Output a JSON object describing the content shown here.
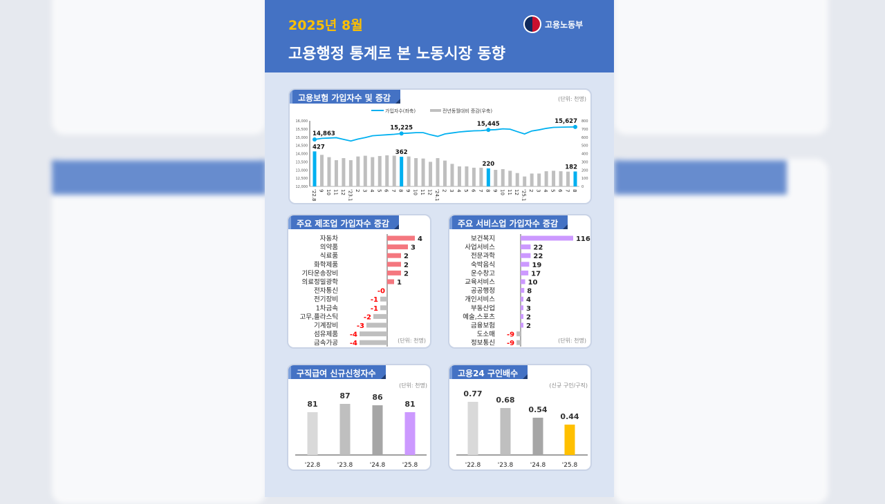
{
  "header": {
    "date": "2025년 8월",
    "title": "고용행정 통계로 본 노동시장 동향",
    "ministry": "고용노동부"
  },
  "colors": {
    "header": "#4472c4",
    "date": "#ffc000",
    "line": "#00b0f0",
    "bar": "#bfbfbf",
    "highlight": "#00b0f0",
    "mfg_pos": "#f4777f",
    "neg": "#bfbfbf",
    "neg_label": "#ff0000",
    "svc_pos": "#cc99ff"
  },
  "insured": {
    "title": "고용보험 가입자수 및 증감",
    "unit": "(단위: 천명)",
    "chart_data": {
      "type": "bar+line",
      "legend": {
        "line": "가입자수(좌축)",
        "bar": "전년동월대비 증감(우축)",
        "placement": "top"
      },
      "x": [
        "'22.8",
        "9",
        "10",
        "11",
        "12",
        "'23.1",
        "2",
        "3",
        "4",
        "5",
        "6",
        "7",
        "8",
        "9",
        "10",
        "11",
        "12",
        "'24.1",
        "2",
        "3",
        "4",
        "5",
        "6",
        "7",
        "8",
        "9",
        "10",
        "11",
        "12",
        "'25.1",
        "2",
        "3",
        "4",
        "5",
        "6",
        "7",
        "8"
      ],
      "line_values": [
        14863,
        14930,
        14950,
        14970,
        14870,
        14770,
        14890,
        14980,
        15090,
        15120,
        15150,
        15180,
        15225,
        15250,
        15280,
        15280,
        15150,
        15050,
        15200,
        15260,
        15320,
        15360,
        15390,
        15400,
        15445,
        15460,
        15510,
        15490,
        15340,
        15200,
        15380,
        15450,
        15540,
        15600,
        15610,
        15620,
        15627
      ],
      "bar_values": [
        427,
        385,
        357,
        320,
        345,
        320,
        365,
        374,
        357,
        371,
        379,
        374,
        362,
        365,
        345,
        340,
        300,
        345,
        315,
        275,
        244,
        244,
        228,
        228,
        220,
        202,
        211,
        191,
        163,
        121,
        157,
        157,
        185,
        191,
        185,
        180,
        182
      ],
      "highlighted": [
        "'22.8",
        "'23.8",
        "'24.8",
        "'25.8"
      ],
      "line_labels": [
        "14,863",
        "15,225",
        "15,445",
        "15,627"
      ],
      "bar_labels": [
        "427",
        "362",
        "220",
        "182"
      ],
      "ylim_left": [
        12000,
        16000
      ],
      "yticks_left": [
        "12,000",
        "12,500",
        "13,000",
        "13,500",
        "14,000",
        "14,500",
        "15,000",
        "15,500",
        "16,000"
      ],
      "ylim_right": [
        0,
        800
      ],
      "yticks_right": [
        "0",
        "100",
        "200",
        "300",
        "400",
        "500",
        "600",
        "700",
        "800"
      ]
    }
  },
  "manufacturing": {
    "title": "주요 제조업 가입자수 증감",
    "unit": "(단위: 천명)",
    "chart_data": {
      "type": "hbar",
      "categories": [
        "자동차",
        "의약품",
        "식료품",
        "화학제품",
        "기타운송장비",
        "의료정밀광학",
        "전자통신",
        "전기장비",
        "1차금속",
        "고무,플라스틱",
        "기계장비",
        "섬유제품",
        "금속가공"
      ],
      "values": [
        4,
        3,
        2,
        2,
        2,
        1,
        0,
        -1,
        -1,
        -2,
        -3,
        -4,
        -4
      ],
      "labels": [
        "4",
        "3",
        "2",
        "2",
        "2",
        "1",
        "-0",
        "-1",
        "-1",
        "-2",
        "-3",
        "-4",
        "-4"
      ]
    }
  },
  "services": {
    "title": "주요 서비스업 가입자수 증감",
    "unit": "(단위: 천명)",
    "chart_data": {
      "type": "hbar",
      "categories": [
        "보건복지",
        "사업서비스",
        "전문과학",
        "숙박음식",
        "운수창고",
        "교육서비스",
        "공공행정",
        "개인서비스",
        "부동산업",
        "예술,스포츠",
        "금융보험",
        "도소매",
        "정보통신"
      ],
      "values": [
        116,
        22,
        22,
        19,
        17,
        10,
        8,
        4,
        3,
        2,
        2,
        -9,
        -9
      ],
      "labels": [
        "116",
        "22",
        "22",
        "19",
        "17",
        "10",
        "8",
        "4",
        "3",
        "2",
        "2",
        "-9",
        "-9"
      ]
    }
  },
  "claims": {
    "title": "구직급여 신규신청자수",
    "unit": "(단위: 천명)",
    "chart_data": {
      "type": "bar",
      "categories": [
        "'22.8",
        "'23.8",
        "'24.8",
        "'25.8"
      ],
      "values": [
        81,
        87,
        86,
        81
      ],
      "labels": [
        "81",
        "87",
        "86",
        "81"
      ],
      "ylim": [
        50,
        100
      ],
      "colors": [
        "#d9d9d9",
        "#bfbfbf",
        "#a6a6a6",
        "#cc99ff"
      ]
    }
  },
  "ratio": {
    "title": "고용24 구인배수",
    "unit": "(신규 구인/구직)",
    "chart_data": {
      "type": "bar",
      "categories": [
        "'22.8",
        "'23.8",
        "'24.8",
        "'25.8"
      ],
      "values": [
        0.77,
        0.68,
        0.54,
        0.44
      ],
      "labels": [
        "0.77",
        "0.68",
        "0.54",
        "0.44"
      ],
      "ylim": [
        0,
        1
      ],
      "colors": [
        "#d9d9d9",
        "#bfbfbf",
        "#a6a6a6",
        "#ffc000"
      ]
    }
  }
}
